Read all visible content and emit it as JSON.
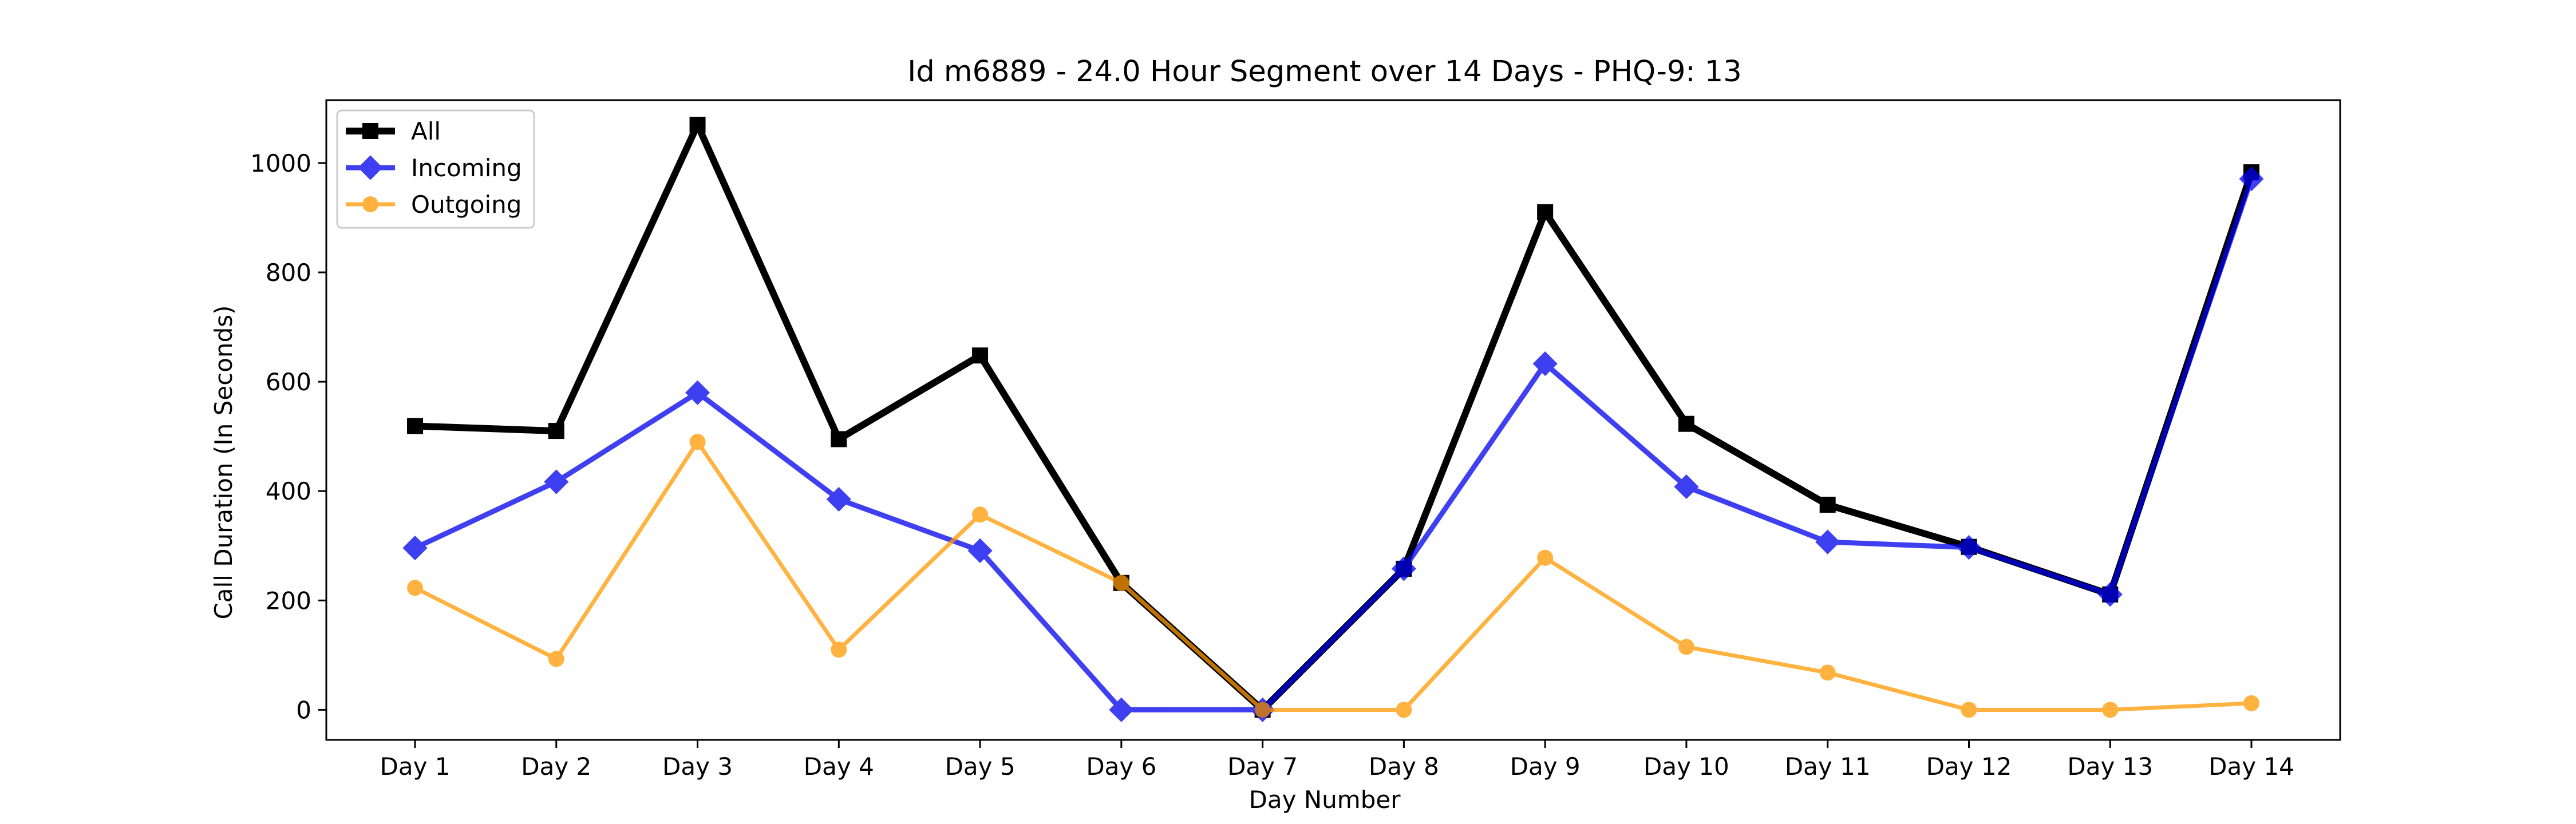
{
  "chart_data": {
    "type": "line",
    "title": "Id m6889 - 24.0 Hour Segment over 14 Days - PHQ-9: 13",
    "xlabel": "Day Number",
    "ylabel": "Call Duration (In Seconds)",
    "categories": [
      "Day 1",
      "Day 2",
      "Day 3",
      "Day 4",
      "Day 5",
      "Day 6",
      "Day 7",
      "Day 8",
      "Day 9",
      "Day 10",
      "Day 11",
      "Day 12",
      "Day 13",
      "Day 14"
    ],
    "ylim": [
      -55,
      1115
    ],
    "yticks": [
      0,
      200,
      400,
      600,
      800,
      1000
    ],
    "grid": false,
    "legend_position": "top-left",
    "series": [
      {
        "name": "All",
        "color": "#000000",
        "marker": "square",
        "values": [
          519,
          510,
          1070,
          495,
          648,
          232,
          0,
          258,
          910,
          523,
          375,
          298,
          211,
          983
        ]
      },
      {
        "name": "Incoming",
        "color": "#0000ee",
        "marker": "diamond",
        "values": [
          296,
          417,
          580,
          385,
          291,
          0,
          0,
          258,
          633,
          408,
          307,
          297,
          211,
          971
        ]
      },
      {
        "name": "Outgoing",
        "color": "#ff9900",
        "marker": "circle",
        "values": [
          223,
          93,
          490,
          110,
          357,
          232,
          0,
          0,
          278,
          115,
          68,
          0,
          0,
          12
        ]
      }
    ]
  }
}
